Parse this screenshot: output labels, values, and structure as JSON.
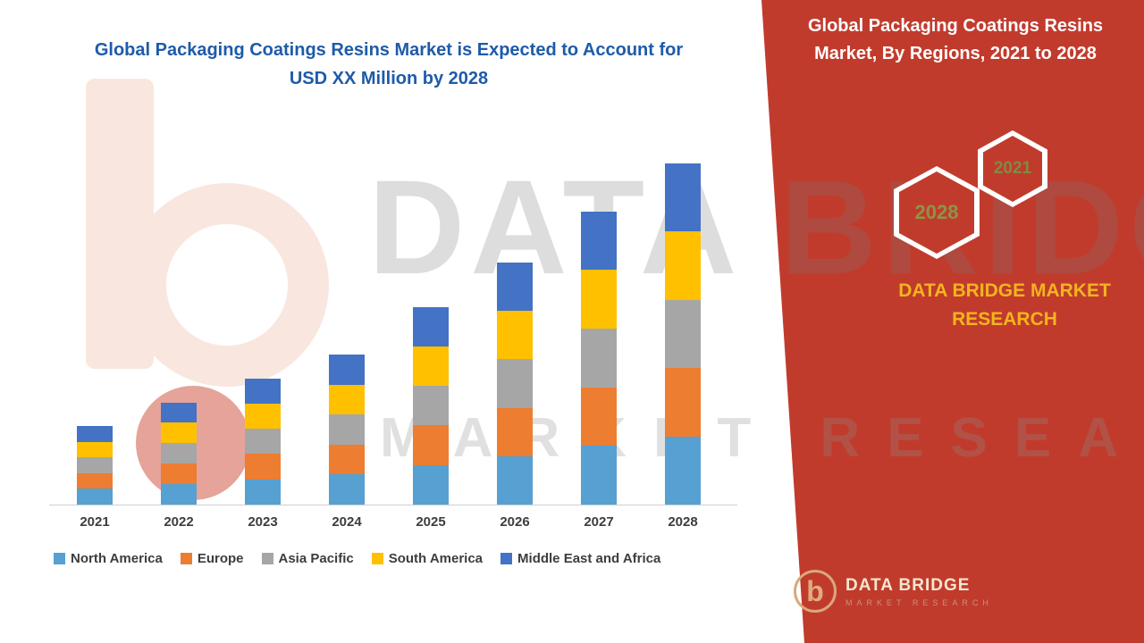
{
  "header": {
    "line1": "Global Packaging Coatings Resins Market is Expected to Account for",
    "line2": "USD XX Million by 2028"
  },
  "watermark": {
    "line1": "DATA BRIDGE",
    "line2": "MARKET RESEARCH"
  },
  "right_panel": {
    "background_color": "#c13b2d",
    "title_line1": "Global Packaging Coatings Resins",
    "title_line2": "Market, By Regions, 2021 to 2028",
    "hex_back_year": "2028",
    "hex_front_year": "2021",
    "brand_line1": "DATA BRIDGE MARKET",
    "brand_line2": "RESEARCH",
    "logo_letter": "b",
    "logo_name": "DATA BRIDGE",
    "logo_sub": "MARKET RESEARCH"
  },
  "chart_data": {
    "type": "bar",
    "stacked": true,
    "title": "Global Packaging Coatings Resins Market is Expected to Account for USD XX Million by 2028",
    "xlabel": "",
    "ylabel": "",
    "units": "relative index (no y-axis shown; values estimated from bar heights, 2028 total = 100)",
    "ylim": [
      0,
      102
    ],
    "grid": false,
    "legend_position": "bottom",
    "categories": [
      "2021",
      "2022",
      "2023",
      "2024",
      "2025",
      "2026",
      "2027",
      "2028"
    ],
    "series": [
      {
        "name": "North America",
        "color": "#56a0d2",
        "values": [
          4.6,
          6.0,
          7.4,
          8.8,
          11.6,
          14.2,
          17.2,
          20.0
        ]
      },
      {
        "name": "Europe",
        "color": "#ed7d31",
        "values": [
          4.6,
          6.0,
          7.4,
          8.8,
          11.6,
          14.2,
          17.2,
          20.0
        ]
      },
      {
        "name": "Asia Pacific",
        "color": "#a6a6a6",
        "values": [
          4.6,
          6.0,
          7.4,
          8.8,
          11.6,
          14.2,
          17.2,
          20.0
        ]
      },
      {
        "name": "South America",
        "color": "#ffc000",
        "values": [
          4.6,
          6.0,
          7.4,
          8.8,
          11.6,
          14.2,
          17.2,
          20.0
        ]
      },
      {
        "name": "Middle East and Africa",
        "color": "#4472c4",
        "values": [
          4.6,
          6.0,
          7.4,
          8.8,
          11.6,
          14.2,
          17.2,
          20.0
        ]
      }
    ],
    "totals": [
      23,
      30,
      37,
      44,
      58,
      71,
      86,
      100
    ]
  }
}
